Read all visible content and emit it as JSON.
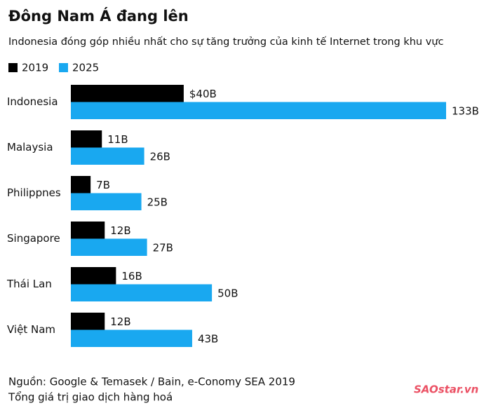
{
  "chart_data": {
    "type": "bar",
    "orientation": "horizontal",
    "title": "Đông Nam Á đang lên",
    "subtitle": "Indonesia đóng góp nhiều nhất cho sự tăng trưởng của kinh tế Internet trong khu vực",
    "categories": [
      "Indonesia",
      "Malaysia",
      "Philippnes",
      "Singapore",
      "Thái Lan",
      "Việt Nam"
    ],
    "series": [
      {
        "name": "2019",
        "color": "#000000",
        "values": [
          40,
          11,
          7,
          12,
          16,
          12
        ],
        "value_labels": [
          "$40B",
          "11B",
          "7B",
          "12B",
          "16B",
          "12B"
        ]
      },
      {
        "name": "2025",
        "color": "#19a8f0",
        "values": [
          133,
          26,
          25,
          27,
          50,
          43
        ],
        "value_labels": [
          "133B",
          "26B",
          "25B",
          "27B",
          "50B",
          "43B"
        ]
      }
    ],
    "legend": "top-left",
    "source": "Nguồn:  Google & Temasek / Bain, e-Conomy SEA 2019",
    "note": "Tổng giá trị giao dịch hàng hoá",
    "watermark": "SAOstar.vn"
  }
}
